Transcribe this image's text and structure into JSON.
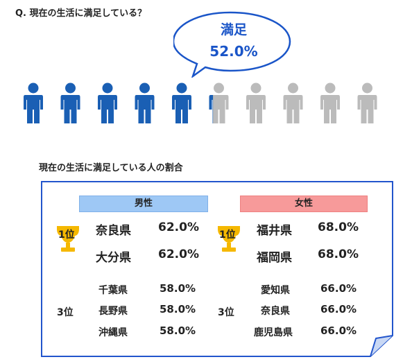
{
  "question": "Q.  現在の生活に満足している？",
  "chart_data": [
    {
      "type": "pictogram",
      "bubble_label": "満足",
      "bubble_value_label": "52.0%",
      "value_percent": 52.0,
      "icon_count": 10,
      "colors": {
        "filled": "#1a5fb4",
        "empty": "#bbbbbb"
      }
    },
    {
      "type": "table",
      "title": "現在の生活に満足している人の割合",
      "male": {
        "header": "男性",
        "first": {
          "rank_label": "1位",
          "rows": [
            {
              "pref": "奈良県",
              "value": "62.0%"
            },
            {
              "pref": "大分県",
              "value": "62.0%"
            }
          ]
        },
        "third": {
          "rank_label": "3位",
          "rows": [
            {
              "pref": "千葉県",
              "value": "58.0%"
            },
            {
              "pref": "長野県",
              "value": "58.0%"
            },
            {
              "pref": "沖縄県",
              "value": "58.0%"
            }
          ]
        }
      },
      "female": {
        "header": "女性",
        "first": {
          "rank_label": "1位",
          "rows": [
            {
              "pref": "福井県",
              "value": "68.0%"
            },
            {
              "pref": "福岡県",
              "value": "68.0%"
            }
          ]
        },
        "third": {
          "rank_label": "3位",
          "rows": [
            {
              "pref": "愛知県",
              "value": "66.0%"
            },
            {
              "pref": "奈良県",
              "value": "66.0%"
            },
            {
              "pref": "鹿児島県",
              "value": "66.0%"
            }
          ]
        }
      }
    }
  ],
  "colors": {
    "accent": "#1a55c8",
    "trophy": "#f5b800",
    "male_header": "#9ec8f5",
    "female_header": "#f79a9a"
  }
}
